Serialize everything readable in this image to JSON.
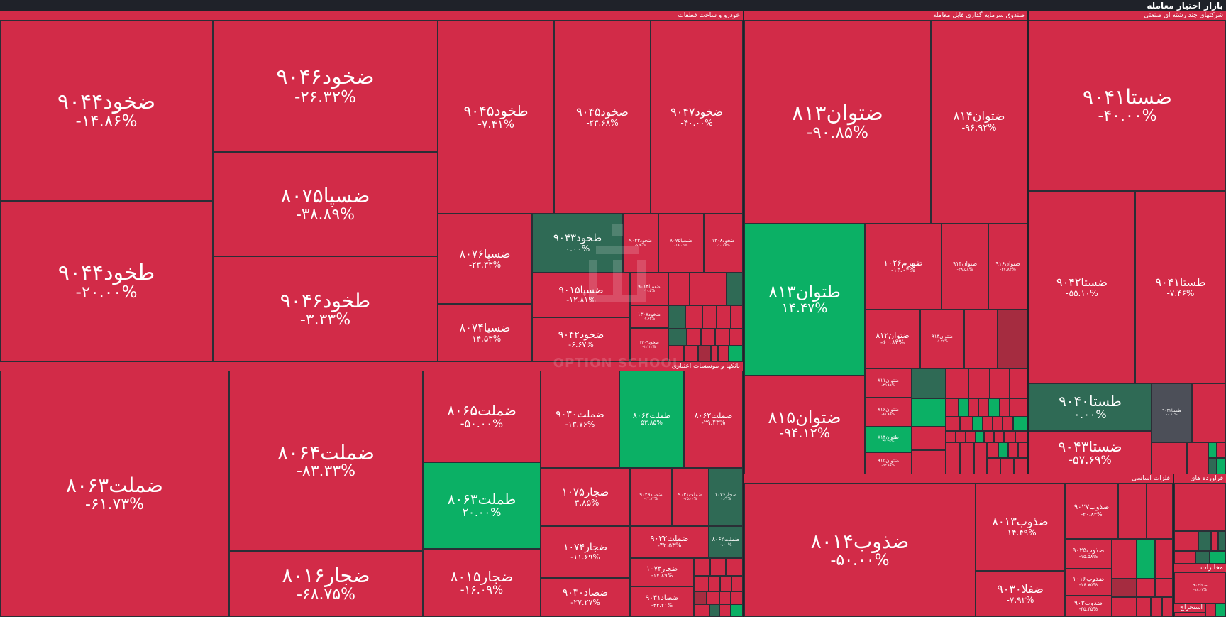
{
  "page": {
    "title": "بازار اختیار معامله"
  },
  "watermark": {
    "text": "OPTION SCHOOL"
  },
  "colors": {
    "negative": "#d22b48",
    "dark_negative": "#a52c40",
    "positive": "#0bb065",
    "dark_positive": "#2f6a55",
    "neutral": "#4c4f58",
    "background": "#1f2229"
  },
  "chart_data": {
    "type": "heatmap",
    "title": "بازار اختیار معامله",
    "sectors": [
      {
        "name": "خودرو و ساخت قطعات",
        "tiles": [
          {
            "name": "ضخود۹۰۴۴",
            "change": "-۱۴.۸۶%",
            "value": -14.86
          },
          {
            "name": "طخود۹۰۴۴",
            "change": "-۲۰.۰۰%",
            "value": -20.0
          },
          {
            "name": "ضخود۹۰۴۶",
            "change": "-۲۶.۳۲%",
            "value": -26.32
          },
          {
            "name": "ضسپا۸۰۷۵",
            "change": "-۳۸.۸۹%",
            "value": -38.89
          },
          {
            "name": "طخود۹۰۴۶",
            "change": "-۳.۳۳%",
            "value": -3.33
          },
          {
            "name": "طخود۹۰۴۵",
            "change": "-۷.۴۱%",
            "value": -7.41
          },
          {
            "name": "ضخود۹۰۴۵",
            "change": "-۲۳.۶۸%",
            "value": -23.68
          },
          {
            "name": "ضخود۹۰۴۷",
            "change": "-۴۰.۰۰%",
            "value": -40.0
          },
          {
            "name": "ضسپا۸۰۷۶",
            "change": "-۲۳.۳۳%",
            "value": -23.33
          },
          {
            "name": "ضسپا۸۰۷۴",
            "change": "-۱۴.۵۳%",
            "value": -14.53
          },
          {
            "name": "طخود۹۰۴۳",
            "change": "۰.۰۰%",
            "value": 0.0
          },
          {
            "name": "ضخود۹۰۴۳",
            "change": "-۶.۹۰%",
            "value": -6.9
          },
          {
            "name": "ضسپا۸۰۷۵",
            "change": "-۱۹.۰۵%",
            "value": -19.05
          },
          {
            "name": "ضخود۱۳۰۸",
            "change": "-۱۰.۸۷%",
            "value": -10.87
          },
          {
            "name": "ضسپا۹۰۱۵",
            "change": "-۱۲.۸۱%",
            "value": -12.81
          },
          {
            "name": "ضسپا۹۰۱۴",
            "change": "-۱۰.۵%",
            "value": -10.5
          },
          {
            "name": "ضخود۱۳۰۷",
            "change": "-۷.۶۳%",
            "value": -7.63
          },
          {
            "name": "ضخود۹۰۴۲",
            "change": "-۶.۶۷%",
            "value": -6.67
          },
          {
            "name": "ضخود۱۲۰۹",
            "change": "-۱۲.۱۲%",
            "value": -12.12
          }
        ]
      },
      {
        "name": "صندوق سرمایه گذاری قابل معامله",
        "tiles": [
          {
            "name": "ضتوان۸۱۳",
            "change": "-۹۰.۸۵%",
            "value": -90.85
          },
          {
            "name": "ضتوان۸۱۴",
            "change": "-۹۶.۹۲%",
            "value": -96.92
          },
          {
            "name": "طتوان۸۱۳",
            "change": "۱۴.۴۷%",
            "value": 14.47
          },
          {
            "name": "ضتوان۸۱۵",
            "change": "-۹۴.۱۲%",
            "value": -94.12
          },
          {
            "name": "ضهرم۱۰۲۶",
            "change": "-۱۳.۰۴%",
            "value": -13.04
          },
          {
            "name": "ضتوان۹۱۴",
            "change": "-۴۸.۵۸%",
            "value": -48.58
          },
          {
            "name": "ضتوان۹۱۶",
            "change": "-۴۷.۸۴%",
            "value": -47.84
          },
          {
            "name": "ضتوان۸۱۲",
            "change": "-۶۰.۸۳%",
            "value": -60.83
          },
          {
            "name": "ضتوان۹۱۳",
            "change": "-۶.۲۹%",
            "value": -6.29
          },
          {
            "name": "ضتوان۸۱۱",
            "change": "-۳۵.۸۹%",
            "value": -35.89
          },
          {
            "name": "ضتوان۸۱۶",
            "change": "-۸۱.۸۹%",
            "value": -81.89
          },
          {
            "name": "طتوان۸۱۴",
            "change": "۳۷.۲۹%",
            "value": 37.29
          },
          {
            "name": "ضتوان۹۱۵",
            "change": "-۵۲.۶۶%",
            "value": -52.66
          }
        ]
      },
      {
        "name": "شرکتهای چند رشته ای صنعتی",
        "tiles": [
          {
            "name": "ضستا۹۰۴۱",
            "change": "-۴۰.۰۰%",
            "value": -40.0
          },
          {
            "name": "ضستا۹۰۴۲",
            "change": "-۵۵.۱۰%",
            "value": -55.1
          },
          {
            "name": "طستا۹۰۴۱",
            "change": "-۷.۴۶%",
            "value": -7.46
          },
          {
            "name": "طستا۹۰۴۰",
            "change": "۰.۰۰%",
            "value": 0.0
          },
          {
            "name": "ضستا۹۰۴۳",
            "change": "-۵۷.۶۹%",
            "value": -57.69
          },
          {
            "name": "طستا۹۰۴۲",
            "change": "-۰.۸۱%",
            "value": -0.81
          }
        ]
      },
      {
        "name": "بانکها و موسسات اعتباری",
        "tiles": [
          {
            "name": "ضملت۸۰۶۳",
            "change": "-۶۱.۷۳%",
            "value": -61.73
          },
          {
            "name": "ضملت۸۰۶۴",
            "change": "-۸۳.۳۳%",
            "value": -83.33
          },
          {
            "name": "ضجار۸۰۱۶",
            "change": "-۶۸.۷۵%",
            "value": -68.75
          },
          {
            "name": "ضملت۸۰۶۵",
            "change": "-۵۰.۰۰%",
            "value": -50.0
          },
          {
            "name": "طملت۸۰۶۳",
            "change": "۲۰.۰۰%",
            "value": 20.0
          },
          {
            "name": "ضجار۸۰۱۵",
            "change": "-۱۶.۰۹%",
            "value": -16.09
          },
          {
            "name": "ضملت۹۰۳۰",
            "change": "-۱۳.۷۶%",
            "value": -13.76
          },
          {
            "name": "طملت۸۰۶۴",
            "change": "۵۳.۸۵%",
            "value": 53.85
          },
          {
            "name": "ضملت۸۰۶۲",
            "change": "-۲۹.۴۳%",
            "value": -29.43
          },
          {
            "name": "ضجار۱۰۷۵",
            "change": "-۳.۸۵%",
            "value": -3.85
          },
          {
            "name": "ضصاد۹۰۲۹",
            "change": "-۲۲.۷۳%",
            "value": -22.73
          },
          {
            "name": "ضملت۹۰۳۱",
            "change": "-۲۵.۰۰%",
            "value": -25.0
          },
          {
            "name": "ضجار۱۰۷۶",
            "change": "۰.۰۰%",
            "value": 0.0
          },
          {
            "name": "ضجار۱۰۷۴",
            "change": "-۱۱.۶۹%",
            "value": -11.69
          },
          {
            "name": "ضملت۹۰۳۲",
            "change": "-۴۲.۵۳%",
            "value": -42.53
          },
          {
            "name": "طملت۸۰۶۲",
            "change": "۰.۰۰%",
            "value": 0.0
          },
          {
            "name": "ضجار۱۰۷۳",
            "change": "-۱۷.۸۹%",
            "value": -17.89
          },
          {
            "name": "ضصاد۹۰۳۰",
            "change": "-۲۷.۲۷%",
            "value": -27.27
          },
          {
            "name": "ضصاد۹۰۳۱",
            "change": "-۴۳.۲۱%",
            "value": -43.21
          }
        ]
      },
      {
        "name": "فلزات اساسی",
        "tiles": [
          {
            "name": "ضذوب۸۰۱۴",
            "change": "-۵۰.۰۰%",
            "value": -50.0
          },
          {
            "name": "ضذوب۸۰۱۳",
            "change": "-۱۴.۴۹%",
            "value": -14.49
          },
          {
            "name": "ضفلا۹۰۳۰",
            "change": "-۷.۹۲%",
            "value": -7.92
          },
          {
            "name": "ضذوب۹۰۲۷",
            "change": "-۲۰.۸۳%",
            "value": -20.83
          },
          {
            "name": "ضذوب۹۰۲۵",
            "change": "-۱۵.۵۸%",
            "value": -15.58
          },
          {
            "name": "ضذوب۱۰۱۶",
            "change": "-۱۶.۷۵%",
            "value": -16.75
          },
          {
            "name": "ضذوب۹۰۳",
            "change": "-۴۵.۴۵%",
            "value": -45.45
          }
        ]
      },
      {
        "name": "فراورده های",
        "tiles": []
      },
      {
        "name": "مخابرات",
        "tiles": [
          {
            "name": "ضخا۹۰۴",
            "change": "-۱۸.۰۷%",
            "value": -18.07
          }
        ]
      },
      {
        "name": "استخراج",
        "tiles": []
      }
    ]
  }
}
